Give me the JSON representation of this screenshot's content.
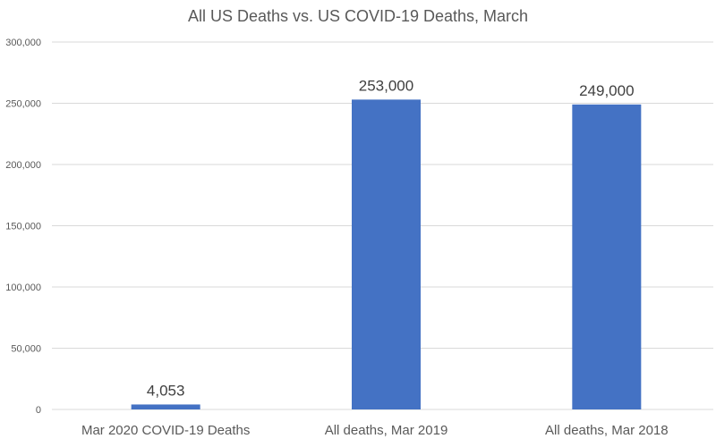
{
  "chart_data": {
    "type": "bar",
    "title": "All US Deaths vs. US COVID-19 Deaths, March",
    "categories": [
      "Mar 2020 COVID-19 Deaths",
      "All deaths, Mar 2019",
      "All deaths, Mar 2018"
    ],
    "values": [
      4053,
      253000,
      249000
    ],
    "data_labels": [
      "4,053",
      "253,000",
      "249,000"
    ],
    "xlabel": "",
    "ylabel": "",
    "ylim": [
      0,
      300000
    ],
    "yticks": [
      0,
      50000,
      100000,
      150000,
      200000,
      250000,
      300000
    ],
    "ytick_labels": [
      "0",
      "50,000",
      "100,000",
      "150,000",
      "200,000",
      "250,000",
      "300,000"
    ],
    "grid": true,
    "legend": "none",
    "bar_color": "#4472C4"
  }
}
